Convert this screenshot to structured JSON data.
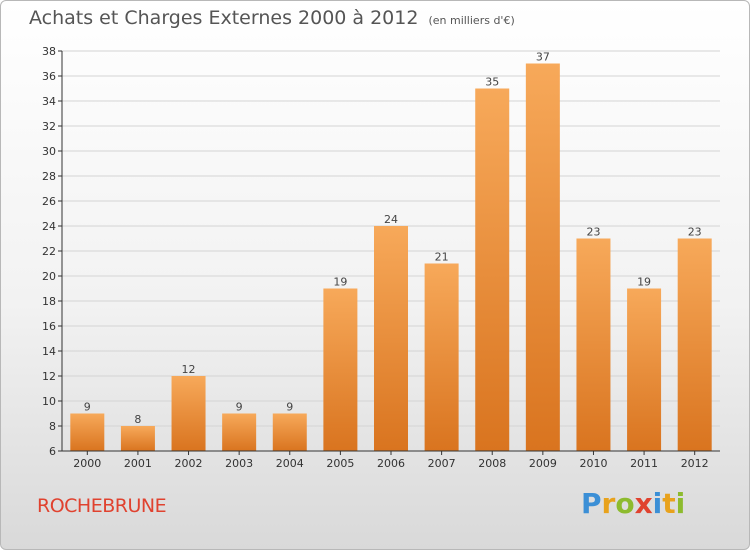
{
  "header": {
    "title": "Achats et Charges Externes 2000 à 2012",
    "subtitle": "(en milliers d'€)"
  },
  "footer": {
    "place": "ROCHEBRUNE",
    "brand": "Proxiti",
    "brand_letters": [
      {
        "char": "P",
        "color": "#3b8fd6"
      },
      {
        "char": "r",
        "color": "#e8a21c"
      },
      {
        "char": "o",
        "color": "#8dbb2e"
      },
      {
        "char": "x",
        "color": "#e0422f"
      },
      {
        "char": "i",
        "color": "#3b8fd6"
      },
      {
        "char": "t",
        "color": "#e8a21c"
      },
      {
        "char": "i",
        "color": "#8dbb2e"
      }
    ]
  },
  "colors": {
    "bar_top": "#f7a95a",
    "bar_bottom": "#d9741f",
    "grid": "#d4d4d4",
    "axis": "#333333"
  },
  "chart_data": {
    "type": "bar",
    "title": "Achats et Charges Externes 2000 à 2012",
    "subtitle": "(en milliers d'€)",
    "categories": [
      "2000",
      "2001",
      "2002",
      "2003",
      "2004",
      "2005",
      "2006",
      "2007",
      "2008",
      "2009",
      "2010",
      "2011",
      "2012"
    ],
    "values": [
      9,
      8,
      12,
      9,
      9,
      19,
      24,
      21,
      35,
      37,
      23,
      19,
      23
    ],
    "ylim": [
      6,
      38
    ],
    "yticks": [
      6,
      8,
      10,
      12,
      14,
      16,
      18,
      20,
      22,
      24,
      26,
      28,
      30,
      32,
      34,
      36,
      38
    ],
    "grid": true,
    "legend": "none"
  }
}
